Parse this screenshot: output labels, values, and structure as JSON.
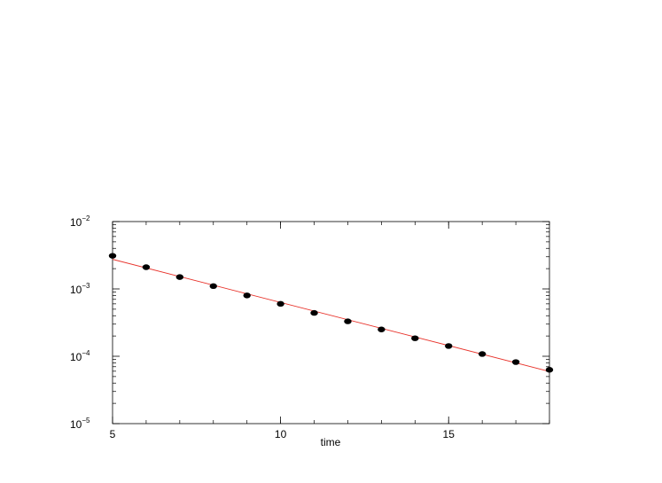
{
  "chart_data": {
    "type": "scatter",
    "title": "",
    "xlabel": "time",
    "ylabel": "",
    "xlim": [
      5,
      18
    ],
    "ylim": [
      1e-05,
      0.01
    ],
    "yscale": "log",
    "grid": false,
    "legend": "none",
    "x_ticks": [
      {
        "value": 5,
        "label": "5"
      },
      {
        "value": 10,
        "label": "10"
      },
      {
        "value": 15,
        "label": "15"
      }
    ],
    "y_ticks": [
      {
        "value": 0.01,
        "base": "10",
        "exp": "−2"
      },
      {
        "value": 0.001,
        "base": "10",
        "exp": "−3"
      },
      {
        "value": 0.0001,
        "base": "10",
        "exp": "−4"
      },
      {
        "value": 1e-05,
        "base": "10",
        "exp": "−5"
      }
    ],
    "series": [
      {
        "kind": "points",
        "color": "#000000",
        "x": [
          5,
          6,
          7,
          8,
          9,
          10,
          11,
          12,
          13,
          14,
          15,
          16,
          17,
          18
        ],
        "y": [
          0.0031,
          0.0021,
          0.0015,
          0.0011,
          0.0008,
          0.0006,
          0.00044,
          0.00033,
          0.00025,
          0.000185,
          0.000142,
          0.000108,
          8.2e-05,
          6.3e-05
        ]
      },
      {
        "kind": "fit-line",
        "color": "#e8322a",
        "x": [
          5,
          18
        ],
        "y": [
          0.00275,
          5.95e-05
        ]
      }
    ]
  }
}
